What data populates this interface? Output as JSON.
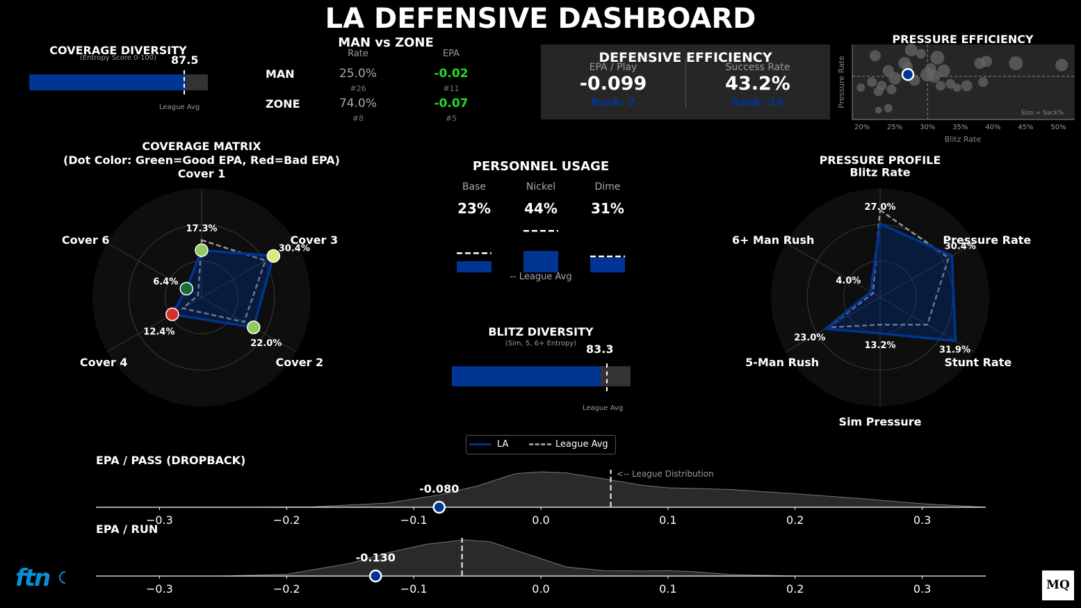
{
  "title": "LA DEFENSIVE DASHBOARD",
  "colors": {
    "team": "#003594",
    "good": "#22dd22",
    "panel": "#262626",
    "track": "#333333",
    "polar_bg": "#0e0e0e"
  },
  "coverage_diversity": {
    "title": "COVERAGE DIVERSITY",
    "subtitle": "(Entropy Score 0-100)",
    "value": 87.5,
    "value_label": "87.5",
    "league_avg": 86.5,
    "league_label": "League Avg"
  },
  "man_zone": {
    "title": "MAN vs ZONE",
    "col_rate": "Rate",
    "col_epa": "EPA",
    "rows": [
      {
        "label": "MAN",
        "rate": "25.0%",
        "rate_rank": "#26",
        "epa": "-0.02",
        "epa_rank": "#11"
      },
      {
        "label": "ZONE",
        "rate": "74.0%",
        "rate_rank": "#8",
        "epa": "-0.07",
        "epa_rank": "#5"
      }
    ]
  },
  "defensive_efficiency": {
    "title": "DEFENSIVE EFFICIENCY",
    "epa_label": "EPA / Play",
    "epa_value": "-0.099",
    "epa_rank": "Rank: 2",
    "sr_label": "Success Rate",
    "sr_value": "43.2%",
    "sr_rank": "Rank: 14"
  },
  "chart_data": [
    {
      "id": "pressure_efficiency",
      "type": "scatter",
      "title": "PRESSURE EFFICIENCY",
      "xlabel": "Blitz Rate",
      "ylabel": "Pressure Rate",
      "xticks": [
        "20%",
        "25%",
        "30%",
        "35%",
        "40%",
        "45%",
        "50%"
      ],
      "xlim": [
        18.5,
        52.5
      ],
      "ylim": [
        18,
        38
      ],
      "x_avg": 30,
      "y_avg": 29.5,
      "note": "Size = Sack%",
      "points": [
        {
          "x": 22.0,
          "y": 35.0,
          "s": 8
        },
        {
          "x": 24.0,
          "y": 31.0,
          "s": 8
        },
        {
          "x": 26.5,
          "y": 33.0,
          "s": 9
        },
        {
          "x": 27.5,
          "y": 36.5,
          "s": 9
        },
        {
          "x": 29.0,
          "y": 35.5,
          "s": 7
        },
        {
          "x": 30.0,
          "y": 30.0,
          "s": 10
        },
        {
          "x": 31.5,
          "y": 34.5,
          "s": 10
        },
        {
          "x": 21.5,
          "y": 28.0,
          "s": 7
        },
        {
          "x": 23.0,
          "y": 27.0,
          "s": 7
        },
        {
          "x": 25.0,
          "y": 29.0,
          "s": 9
        },
        {
          "x": 28.0,
          "y": 28.5,
          "s": 8
        },
        {
          "x": 31.0,
          "y": 29.5,
          "s": 9
        },
        {
          "x": 32.5,
          "y": 31.0,
          "s": 9
        },
        {
          "x": 33.5,
          "y": 27.5,
          "s": 7
        },
        {
          "x": 34.5,
          "y": 26.5,
          "s": 6
        },
        {
          "x": 36.0,
          "y": 27.0,
          "s": 8
        },
        {
          "x": 38.0,
          "y": 33.0,
          "s": 8
        },
        {
          "x": 39.0,
          "y": 33.5,
          "s": 8
        },
        {
          "x": 43.5,
          "y": 33.0,
          "s": 10
        },
        {
          "x": 50.5,
          "y": 32.5,
          "s": 9
        },
        {
          "x": 19.8,
          "y": 26.5,
          "s": 6
        },
        {
          "x": 22.5,
          "y": 25.5,
          "s": 7
        },
        {
          "x": 24.5,
          "y": 26.0,
          "s": 7
        },
        {
          "x": 22.5,
          "y": 20.5,
          "s": 5
        },
        {
          "x": 24.0,
          "y": 21.0,
          "s": 6
        },
        {
          "x": 32.0,
          "y": 27.0,
          "s": 7
        },
        {
          "x": 38.5,
          "y": 28.0,
          "s": 7
        },
        {
          "x": 27.0,
          "y": 32.0,
          "s": 7
        },
        {
          "x": 30.5,
          "y": 31.5,
          "s": 8
        }
      ],
      "team_point": {
        "x": 27.0,
        "y": 30.0
      }
    },
    {
      "id": "coverage_matrix",
      "type": "radar",
      "title": "COVERAGE MATRIX",
      "subtitle": "(Dot Color: Green=Good EPA, Red=Bad EPA)",
      "axes": [
        "Cover 1",
        "Cover 3",
        "Cover 2",
        "Cover 4",
        "Cover 6"
      ],
      "angles": [
        90,
        30,
        -30,
        -150,
        150
      ],
      "rmax": 40,
      "team": [
        17.3,
        30.4,
        22.0,
        12.4,
        6.4
      ],
      "league": [
        21.0,
        27.0,
        18.0,
        8.0,
        1.5
      ],
      "labels": [
        "17.3%",
        "30.4%",
        "22.0%",
        "12.4%",
        "6.4%"
      ],
      "dot_colors": [
        "#8fcc5a",
        "#dce87a",
        "#8fcc5a",
        "#d73027",
        "#1a6b3a"
      ]
    },
    {
      "id": "personnel_usage",
      "type": "bar",
      "title": "PERSONNEL USAGE",
      "categories": [
        "Base",
        "Nickel",
        "Dime"
      ],
      "values": [
        23,
        44,
        31
      ],
      "labels": [
        "23%",
        "44%",
        "31%"
      ],
      "league": [
        24,
        52,
        20
      ],
      "legend": "-- League Avg"
    },
    {
      "id": "blitz_diversity",
      "type": "bar",
      "title": "BLITZ DIVERSITY",
      "subtitle": "(Sim, 5, 6+ Entropy)",
      "value": 83.3,
      "value_label": "83.3",
      "league_avg": 86.5,
      "league_label": "League Avg"
    },
    {
      "id": "pressure_profile",
      "type": "radar",
      "title": "PRESSURE PROFILE",
      "axes": [
        "Blitz Rate",
        "Pressure Rate",
        "Stunt Rate",
        "Sim Pressure",
        "5-Man Rush",
        "6+ Man Rush"
      ],
      "angles": [
        90,
        30,
        -30,
        -90,
        -150,
        150
      ],
      "rmax": 40,
      "team": [
        27.0,
        30.4,
        31.9,
        13.2,
        23.0,
        4.0
      ],
      "league": [
        32.0,
        29.0,
        20.0,
        10.0,
        22.0,
        3.0
      ],
      "labels": [
        "27.0%",
        "30.4%",
        "31.9%",
        "13.2%",
        "23.0%",
        "4.0%"
      ]
    },
    {
      "id": "epa_pass",
      "type": "area",
      "title": "EPA / PASS (DROPBACK)",
      "xlim": [
        -0.35,
        0.35
      ],
      "xticks": [
        "−0.3",
        "−0.2",
        "−0.1",
        "0.0",
        "0.1",
        "0.2",
        "0.3"
      ],
      "xtick_values": [
        -0.3,
        -0.2,
        -0.1,
        0.0,
        0.1,
        0.2,
        0.3
      ],
      "team_value": -0.08,
      "team_label": "-0.080",
      "league_avg": 0.055,
      "annotation": "<-- League Distribution",
      "density": [
        [
          -0.35,
          0
        ],
        [
          -0.25,
          0
        ],
        [
          -0.18,
          0.01
        ],
        [
          -0.12,
          0.12
        ],
        [
          -0.08,
          0.35
        ],
        [
          -0.05,
          0.6
        ],
        [
          -0.02,
          0.95
        ],
        [
          0.0,
          1.0
        ],
        [
          0.02,
          0.97
        ],
        [
          0.05,
          0.8
        ],
        [
          0.08,
          0.62
        ],
        [
          0.1,
          0.55
        ],
        [
          0.15,
          0.5
        ],
        [
          0.2,
          0.38
        ],
        [
          0.25,
          0.25
        ],
        [
          0.3,
          0.1
        ],
        [
          0.35,
          0
        ]
      ]
    },
    {
      "id": "epa_run",
      "type": "area",
      "title": "EPA / RUN",
      "xlim": [
        -0.35,
        0.35
      ],
      "xticks": [
        "−0.3",
        "−0.2",
        "−0.1",
        "0.0",
        "0.1",
        "0.2",
        "0.3"
      ],
      "xtick_values": [
        -0.3,
        -0.2,
        -0.1,
        0.0,
        0.1,
        0.2,
        0.3
      ],
      "team_value": -0.13,
      "team_label": "-0.130",
      "league_avg": -0.062,
      "density": [
        [
          -0.35,
          0
        ],
        [
          -0.25,
          0
        ],
        [
          -0.2,
          0.05
        ],
        [
          -0.15,
          0.35
        ],
        [
          -0.12,
          0.65
        ],
        [
          -0.09,
          0.88
        ],
        [
          -0.06,
          1.0
        ],
        [
          -0.04,
          0.95
        ],
        [
          -0.01,
          0.6
        ],
        [
          0.02,
          0.25
        ],
        [
          0.05,
          0.15
        ],
        [
          0.08,
          0.14
        ],
        [
          0.1,
          0.15
        ],
        [
          0.12,
          0.12
        ],
        [
          0.15,
          0.04
        ],
        [
          0.2,
          0
        ],
        [
          0.35,
          0
        ]
      ]
    }
  ],
  "legend": {
    "team_label": "LA",
    "league_label": "League Avg"
  },
  "logos": {
    "left": "ftn",
    "right": "MQ"
  }
}
